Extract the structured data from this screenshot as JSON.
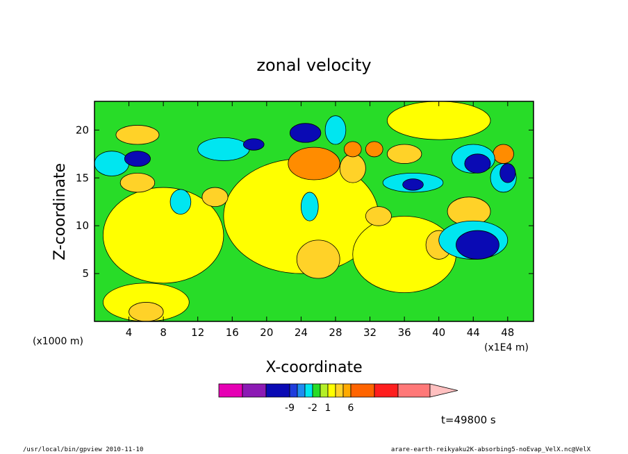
{
  "chart_data": {
    "type": "heatmap",
    "title": "zonal velocity",
    "xlabel": "X-coordinate",
    "ylabel": "Z-coordinate",
    "x_unit_left": "(x1000 m)",
    "x_unit_right": "(x1E4 m)",
    "xlim": [
      0,
      51
    ],
    "ylim": [
      0,
      23
    ],
    "x_ticks": [
      4,
      8,
      12,
      16,
      20,
      24,
      28,
      32,
      36,
      40,
      44,
      48
    ],
    "y_ticks": [
      5,
      10,
      15,
      20
    ],
    "time_label": "t=49800 s",
    "colorbar": {
      "colors": [
        "#e600b4",
        "#8c1ab4",
        "#0a0ab4",
        "#1e3cdc",
        "#1e8cf0",
        "#00e6f0",
        "#28dc28",
        "#b4f028",
        "#ffff00",
        "#ffd228",
        "#ffaa00",
        "#ff6400",
        "#ff1e1e",
        "#ff7878",
        "#ffc0c0"
      ],
      "tick_labels": [
        {
          "label": "-9",
          "index": 2
        },
        {
          "label": "-2",
          "index": 5
        },
        {
          "label": "1",
          "index": 7
        },
        {
          "label": "6",
          "index": 10
        }
      ]
    },
    "regions": [
      {
        "level": "yellow",
        "x": 8,
        "y": 9,
        "rx": 7,
        "ry": 5
      },
      {
        "level": "yellow",
        "x": 24,
        "y": 11,
        "rx": 9,
        "ry": 6
      },
      {
        "level": "yellow",
        "x": 36,
        "y": 7,
        "rx": 6,
        "ry": 4
      },
      {
        "level": "yellow",
        "x": 6,
        "y": 2,
        "rx": 5,
        "ry": 2
      },
      {
        "level": "yellow",
        "x": 40,
        "y": 21,
        "rx": 6,
        "ry": 2
      },
      {
        "level": "light-orange",
        "x": 26,
        "y": 6.5,
        "rx": 2.5,
        "ry": 2
      },
      {
        "level": "light-orange",
        "x": 14,
        "y": 13,
        "rx": 1.5,
        "ry": 1
      },
      {
        "level": "light-orange",
        "x": 43.5,
        "y": 11.5,
        "rx": 2.5,
        "ry": 1.5
      },
      {
        "level": "light-orange",
        "x": 5,
        "y": 19.5,
        "rx": 2.5,
        "ry": 1
      },
      {
        "level": "light-orange",
        "x": 5,
        "y": 14.5,
        "rx": 2,
        "ry": 1
      },
      {
        "level": "light-orange",
        "x": 6,
        "y": 1,
        "rx": 2,
        "ry": 1
      },
      {
        "level": "light-orange",
        "x": 40,
        "y": 8,
        "rx": 1.5,
        "ry": 1.5
      },
      {
        "level": "light-orange",
        "x": 30,
        "y": 16,
        "rx": 1.5,
        "ry": 1.5
      },
      {
        "level": "light-orange",
        "x": 36,
        "y": 17.5,
        "rx": 2,
        "ry": 1
      },
      {
        "level": "light-orange",
        "x": 33,
        "y": 11,
        "rx": 1.5,
        "ry": 1
      },
      {
        "level": "orange",
        "x": 25.5,
        "y": 16.5,
        "rx": 3,
        "ry": 1.7
      },
      {
        "level": "orange",
        "x": 30,
        "y": 18,
        "rx": 1,
        "ry": 0.8
      },
      {
        "level": "orange",
        "x": 32.5,
        "y": 18,
        "rx": 1,
        "ry": 0.8
      },
      {
        "level": "orange",
        "x": 47.5,
        "y": 17.5,
        "rx": 1.2,
        "ry": 1
      },
      {
        "level": "cyan",
        "x": 15,
        "y": 18,
        "rx": 3,
        "ry": 1.2
      },
      {
        "level": "cyan",
        "x": 2,
        "y": 16.5,
        "rx": 2,
        "ry": 1.3
      },
      {
        "level": "cyan",
        "x": 37,
        "y": 14.5,
        "rx": 3.5,
        "ry": 1
      },
      {
        "level": "cyan",
        "x": 44,
        "y": 8.5,
        "rx": 4,
        "ry": 2
      },
      {
        "level": "cyan",
        "x": 44,
        "y": 17,
        "rx": 2.5,
        "ry": 1.5
      },
      {
        "level": "cyan",
        "x": 10,
        "y": 12.5,
        "rx": 1.2,
        "ry": 1.3
      },
      {
        "level": "cyan",
        "x": 25,
        "y": 12,
        "rx": 1,
        "ry": 1.5
      },
      {
        "level": "cyan",
        "x": 28,
        "y": 20,
        "rx": 1.2,
        "ry": 1.5
      },
      {
        "level": "cyan",
        "x": 47.5,
        "y": 15,
        "rx": 1.5,
        "ry": 1.5
      },
      {
        "level": "blue",
        "x": 5,
        "y": 17,
        "rx": 1.5,
        "ry": 0.8
      },
      {
        "level": "blue",
        "x": 24.5,
        "y": 19.7,
        "rx": 1.8,
        "ry": 1
      },
      {
        "level": "blue",
        "x": 44.5,
        "y": 8,
        "rx": 2.5,
        "ry": 1.5
      },
      {
        "level": "blue",
        "x": 44.5,
        "y": 16.5,
        "rx": 1.5,
        "ry": 1
      },
      {
        "level": "blue",
        "x": 37,
        "y": 14.3,
        "rx": 1.2,
        "ry": 0.6
      },
      {
        "level": "blue",
        "x": 48,
        "y": 15.5,
        "rx": 0.9,
        "ry": 1
      },
      {
        "level": "blue",
        "x": 18.5,
        "y": 18.5,
        "rx": 1.2,
        "ry": 0.6
      }
    ]
  },
  "footer": {
    "left": "/usr/local/bin/gpview  2010-11-10",
    "right": "arare-earth-reikyaku2K-absorbing5-noEvap_VelX.nc@VelX"
  }
}
